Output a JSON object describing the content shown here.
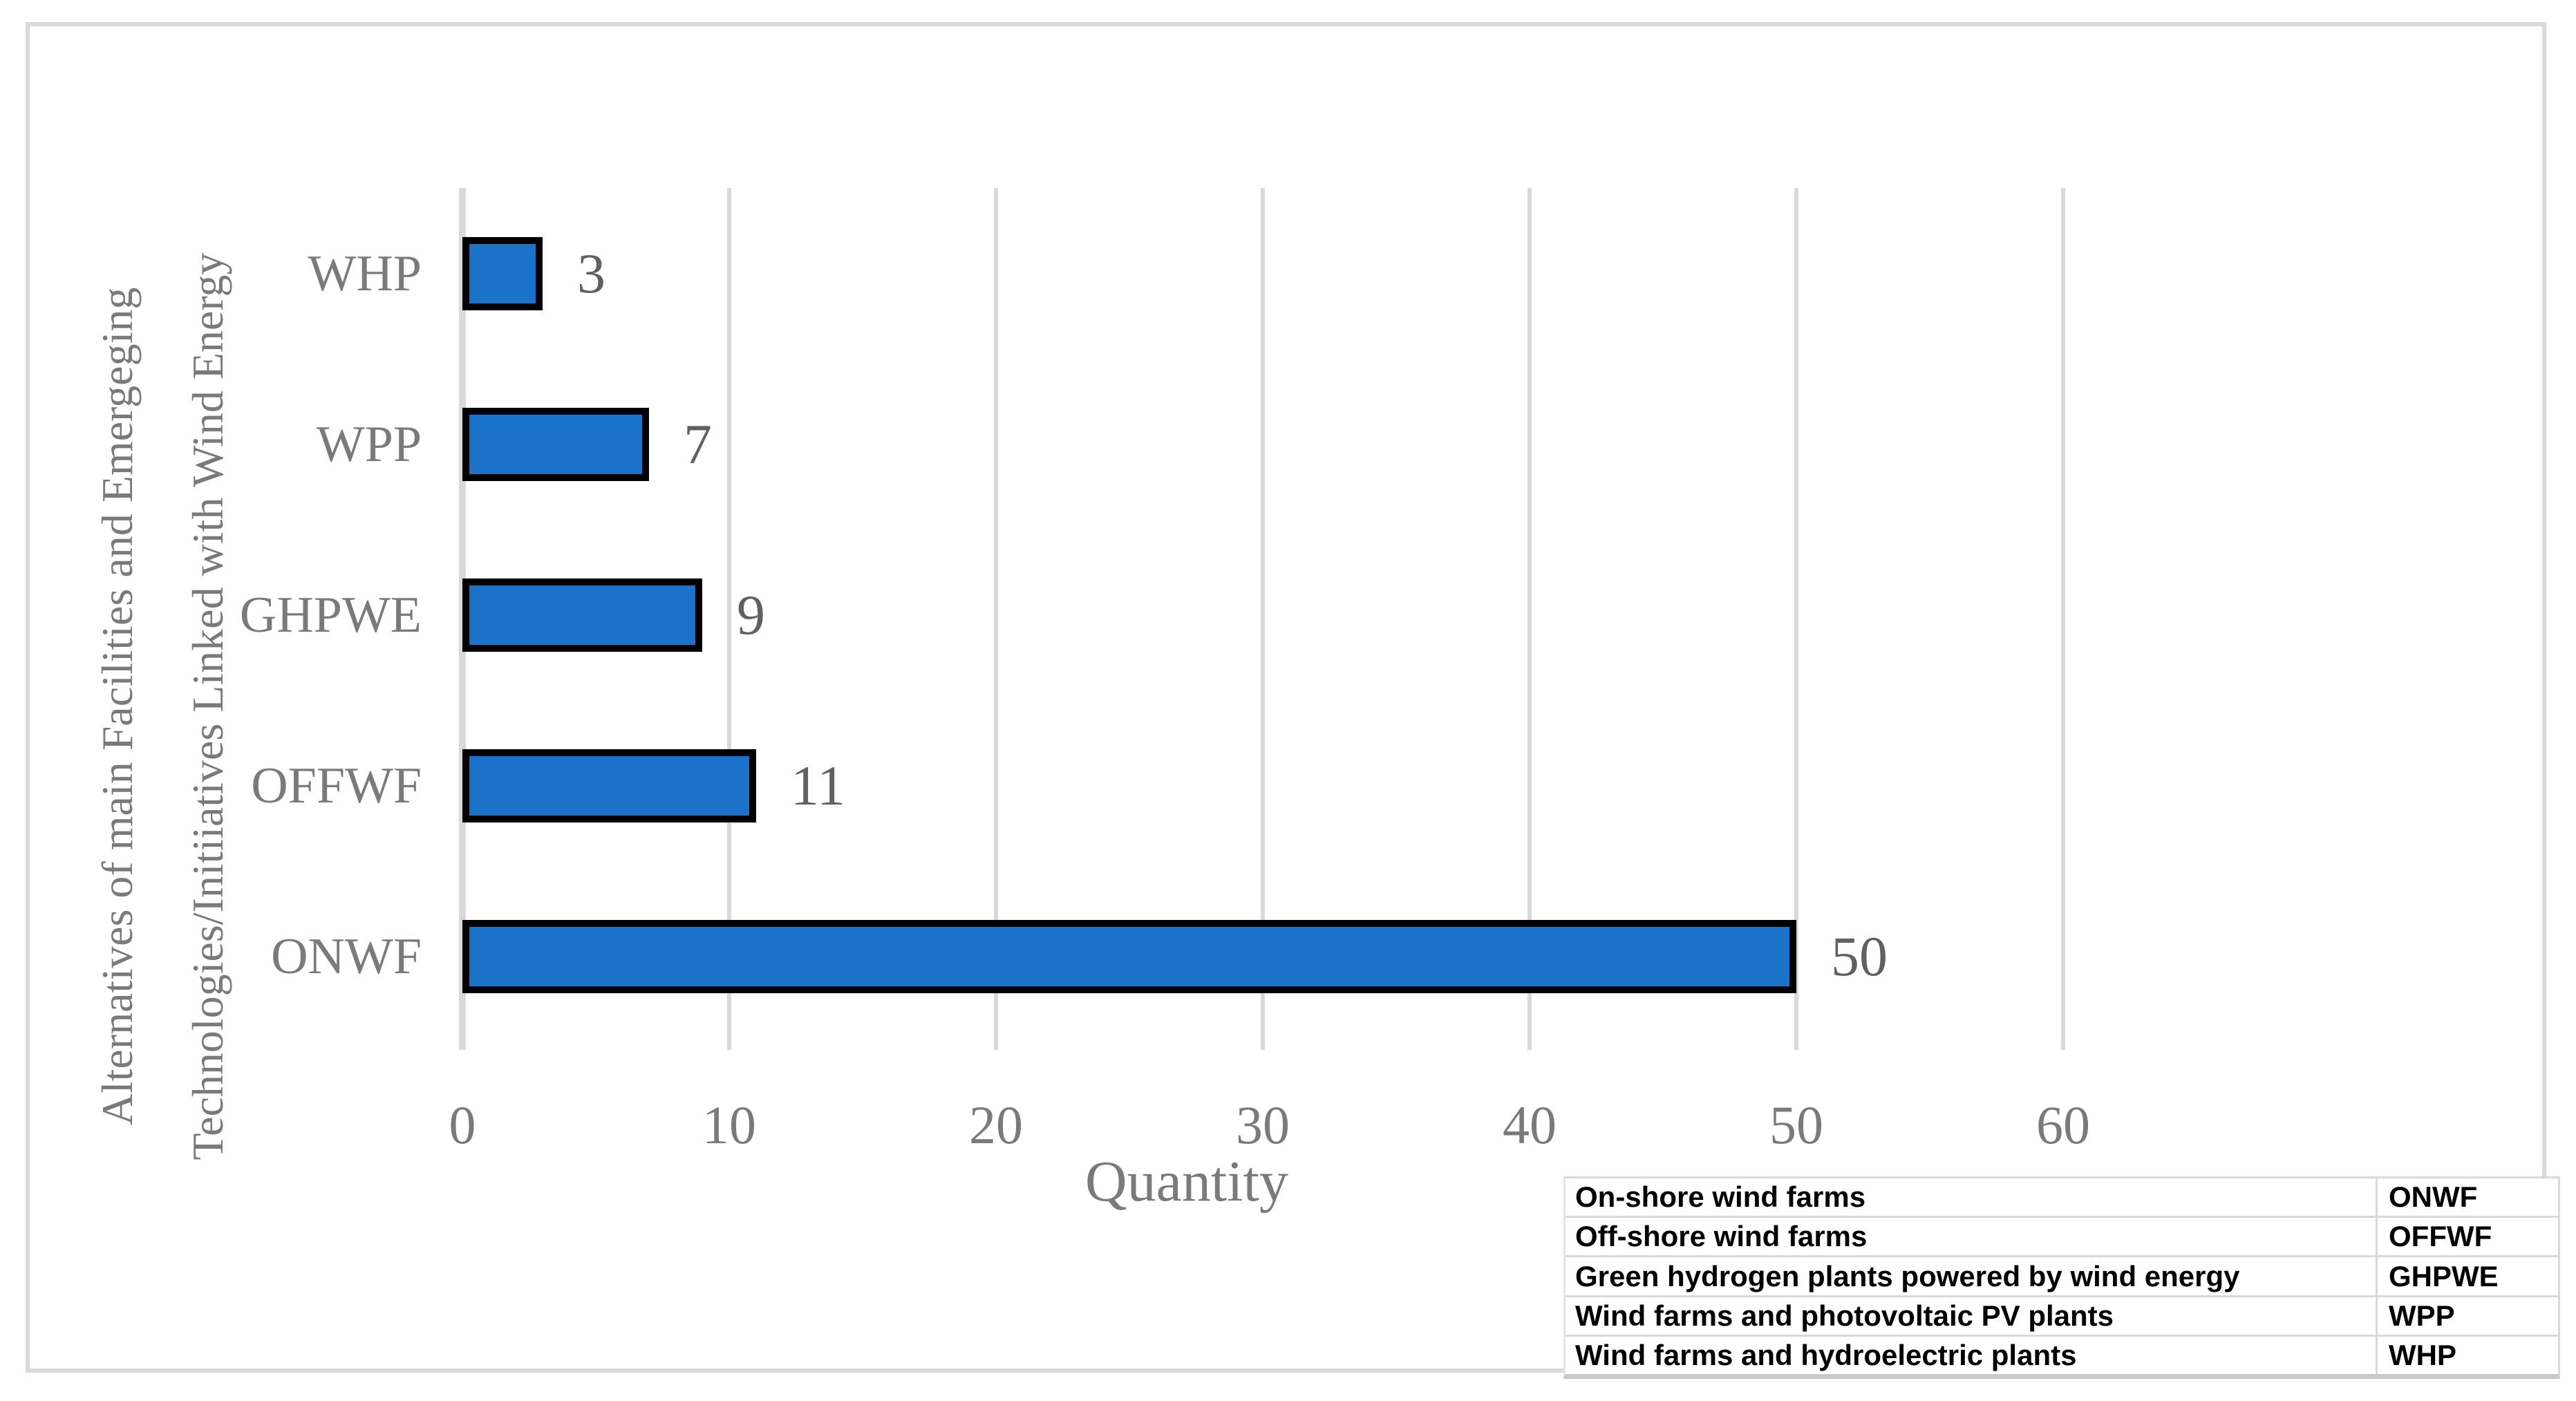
{
  "chart_data": {
    "type": "bar",
    "orientation": "horizontal",
    "xlabel": "Quantity",
    "ylabel_line1": "Alternatives of main Facilities and Emergeging",
    "ylabel_line2": "Technologies/Initiiatives Linked with Wind Energy",
    "categories": [
      "WHP",
      "WPP",
      "GHPWE",
      "OFFWF",
      "ONWF"
    ],
    "values": [
      3,
      7,
      9,
      11,
      50
    ],
    "x_ticks": [
      "0",
      "10",
      "20",
      "30",
      "40",
      "50",
      "60"
    ],
    "xlim": [
      0,
      60
    ],
    "grid": true,
    "legend_position": "bottom-right-table",
    "colors": {
      "bar_fill": "#1a73c8",
      "bar_border": "#000000",
      "gridline": "#d9d9d9",
      "axis_text": "#7a7a7a",
      "value_text": "#606060",
      "frame_border": "#d9d9d9"
    }
  },
  "legend_table": {
    "rows": [
      {
        "name": "On-shore wind farms",
        "abbr": "ONWF"
      },
      {
        "name": "Off-shore wind farms",
        "abbr": "OFFWF"
      },
      {
        "name": "Green hydrogen plants powered by wind energy",
        "abbr": "GHPWE"
      },
      {
        "name": "Wind farms and photovoltaic PV plants",
        "abbr": "WPP"
      },
      {
        "name": "Wind farms and hydroelectric plants",
        "abbr": "WHP"
      }
    ]
  }
}
